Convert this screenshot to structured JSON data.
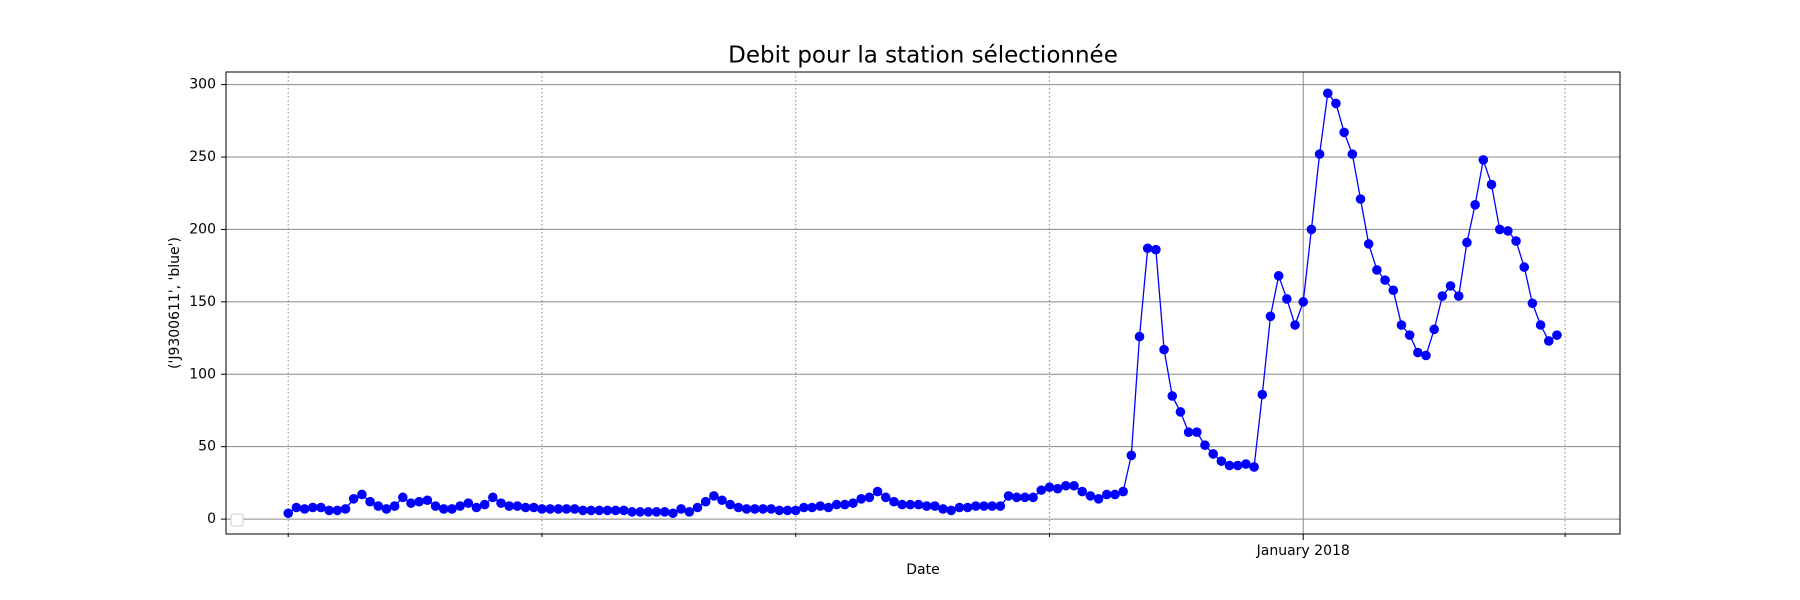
{
  "chart_data": {
    "type": "line",
    "title": "Debit pour la station sélectionnée",
    "x_label": "Date",
    "y_label": "('J9300611', 'blue')",
    "x": [
      0,
      1,
      2,
      3,
      4,
      5,
      6,
      7,
      8,
      9,
      10,
      11,
      12,
      13,
      14,
      15,
      16,
      17,
      18,
      19,
      20,
      21,
      22,
      23,
      24,
      25,
      26,
      27,
      28,
      29,
      30,
      31,
      32,
      33,
      34,
      35,
      36,
      37,
      38,
      39,
      40,
      41,
      42,
      43,
      44,
      45,
      46,
      47,
      48,
      49,
      50,
      51,
      52,
      53,
      54,
      55,
      56,
      57,
      58,
      59,
      60,
      61,
      62,
      63,
      64,
      65,
      66,
      67,
      68,
      69,
      70,
      71,
      72,
      73,
      74,
      75,
      76,
      77,
      78,
      79,
      80,
      81,
      82,
      83,
      84,
      85,
      86,
      87,
      88,
      89,
      90,
      91,
      92,
      93,
      94,
      95,
      96,
      97,
      98,
      99,
      100,
      101,
      102,
      103,
      104,
      105,
      106,
      107,
      108,
      109,
      110,
      111,
      112,
      113,
      114,
      115,
      116,
      117,
      118,
      119,
      120,
      121,
      122,
      123,
      124,
      125,
      126,
      127,
      128,
      129,
      130,
      131,
      132,
      133,
      134,
      135,
      136,
      137,
      138,
      139,
      140,
      141,
      142,
      143,
      144,
      145,
      146,
      147,
      148,
      149,
      150,
      151,
      152,
      153,
      154,
      155
    ],
    "series": [
      {
        "color": "#0000ff",
        "values": [
          4,
          8,
          7,
          8,
          8,
          6,
          6,
          7,
          14,
          17,
          12,
          9,
          7,
          9,
          15,
          11,
          12,
          13,
          9,
          7,
          7,
          9,
          11,
          8,
          10,
          15,
          11,
          9,
          9,
          8,
          8,
          7,
          7,
          7,
          7,
          7,
          6,
          6,
          6,
          6,
          6,
          6,
          5,
          5,
          5,
          5,
          5,
          4,
          7,
          5,
          8,
          12,
          16,
          13,
          10,
          8,
          7,
          7,
          7,
          7,
          6,
          6,
          6,
          8,
          8,
          9,
          8,
          10,
          10,
          11,
          14,
          15,
          19,
          15,
          12,
          10,
          10,
          10,
          9,
          9,
          7,
          6,
          8,
          8,
          9,
          9,
          9,
          9,
          16,
          15,
          15,
          15,
          20,
          22,
          21,
          23,
          23,
          19,
          16,
          14,
          17,
          17,
          19,
          44,
          126,
          187,
          186,
          117,
          85,
          74,
          60,
          60,
          51,
          45,
          40,
          37,
          37,
          38,
          36,
          86,
          140,
          168,
          152,
          134,
          150,
          200,
          252,
          294,
          287,
          267,
          252,
          221,
          190,
          172,
          165,
          158,
          134,
          127,
          115,
          113,
          131,
          154,
          161,
          154,
          191,
          217,
          248,
          231,
          200,
          199,
          192,
          174,
          149,
          134,
          123,
          127
        ]
      }
    ],
    "xlim": [
      -7.6,
      162.7
    ],
    "xticks": [
      0,
      31,
      62,
      93,
      {
        "value": 124,
        "label": "January 2018"
      },
      156
    ],
    "ylim": [
      -10.3,
      308.7
    ],
    "yticks": [
      0,
      50,
      100,
      150,
      200,
      250,
      300
    ],
    "grid": true
  }
}
